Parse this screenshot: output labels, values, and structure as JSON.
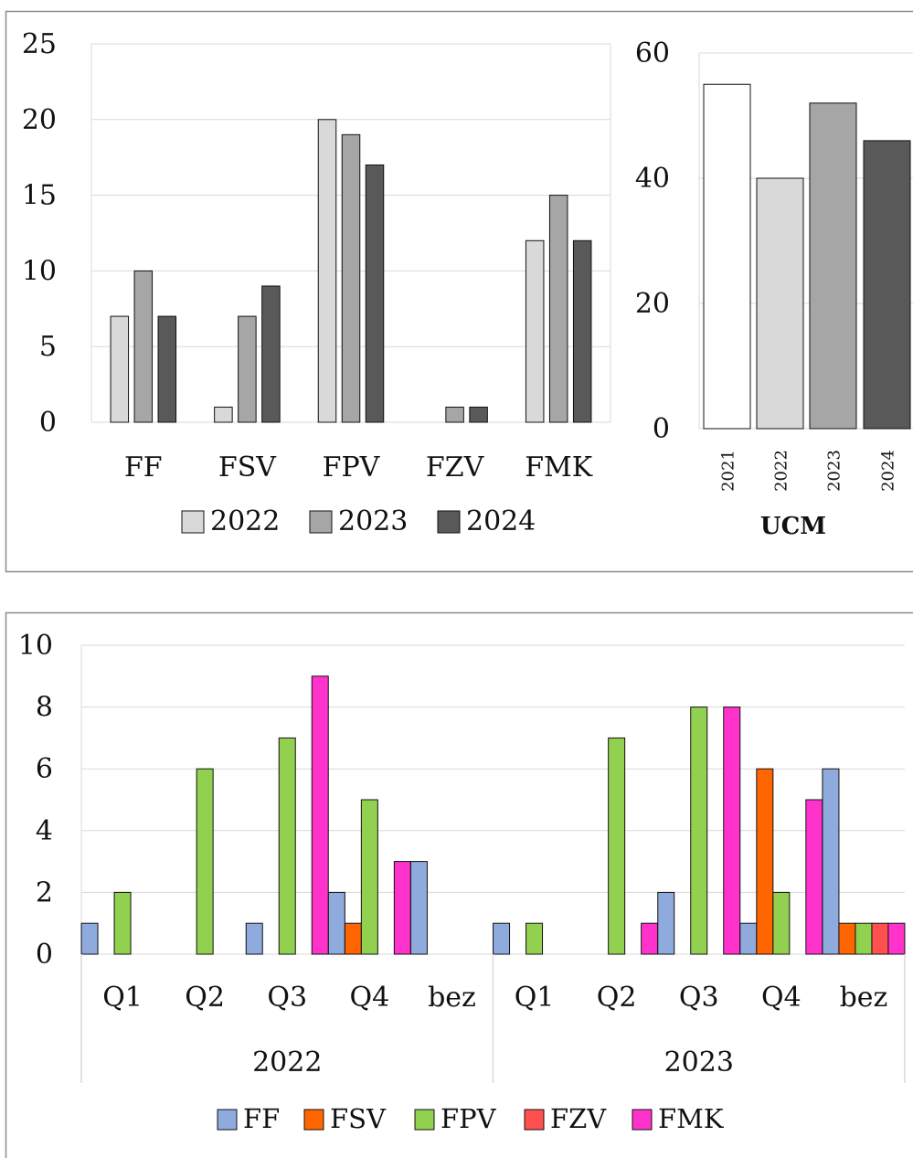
{
  "chart_data": [
    {
      "type": "bar",
      "title": "",
      "categories": [
        "FF",
        "FSV",
        "FPV",
        "FZV",
        "FMK"
      ],
      "series": [
        {
          "name": "2022",
          "values": [
            7,
            1,
            20,
            0,
            12
          ],
          "color": "#d9d9d9"
        },
        {
          "name": "2023",
          "values": [
            10,
            7,
            19,
            1,
            15
          ],
          "color": "#a6a6a6"
        },
        {
          "name": "2024",
          "values": [
            7,
            9,
            17,
            1,
            12
          ],
          "color": "#595959"
        }
      ],
      "ylim": [
        0,
        25
      ],
      "yticks": [
        "0",
        "5",
        "10",
        "15",
        "20",
        "25"
      ],
      "grid": true,
      "legend": "bottom"
    },
    {
      "type": "bar",
      "title": "",
      "categories": [
        "2021",
        "2022",
        "2023",
        "2024"
      ],
      "values": [
        55,
        40,
        52,
        46
      ],
      "colors": [
        "#ffffff",
        "#d9d9d9",
        "#a6a6a6",
        "#595959"
      ],
      "xlabel": "UCM",
      "ylim": [
        0,
        60
      ],
      "yticks": [
        "0",
        "20",
        "40",
        "60"
      ],
      "grid": true
    },
    {
      "type": "bar",
      "title": "",
      "groups": [
        {
          "label": "2022",
          "categories": [
            "Q1",
            "Q2",
            "Q3",
            "Q4",
            "bez"
          ]
        },
        {
          "label": "2023",
          "categories": [
            "Q1",
            "Q2",
            "Q3",
            "Q4",
            "bez"
          ]
        }
      ],
      "series": [
        {
          "name": "FF",
          "color": "#8faadc",
          "values": [
            1,
            0,
            1,
            2,
            3,
            1,
            0,
            2,
            1,
            6
          ]
        },
        {
          "name": "FSV",
          "color": "#ff6600",
          "values": [
            0,
            0,
            0,
            1,
            0,
            0,
            0,
            0,
            6,
            1
          ]
        },
        {
          "name": "FPV",
          "color": "#92d050",
          "values": [
            2,
            6,
            7,
            5,
            0,
            1,
            7,
            8,
            2,
            1
          ]
        },
        {
          "name": "FZV",
          "color": "#ff5050",
          "values": [
            0,
            0,
            0,
            0,
            0,
            0,
            0,
            0,
            0,
            1
          ]
        },
        {
          "name": "FMK",
          "color": "#ff33cc",
          "values": [
            0,
            0,
            9,
            3,
            0,
            0,
            1,
            8,
            5,
            1
          ]
        }
      ],
      "ylim": [
        0,
        10
      ],
      "yticks": [
        "0",
        "2",
        "4",
        "6",
        "8",
        "10"
      ],
      "grid": true,
      "legend": "bottom"
    }
  ]
}
